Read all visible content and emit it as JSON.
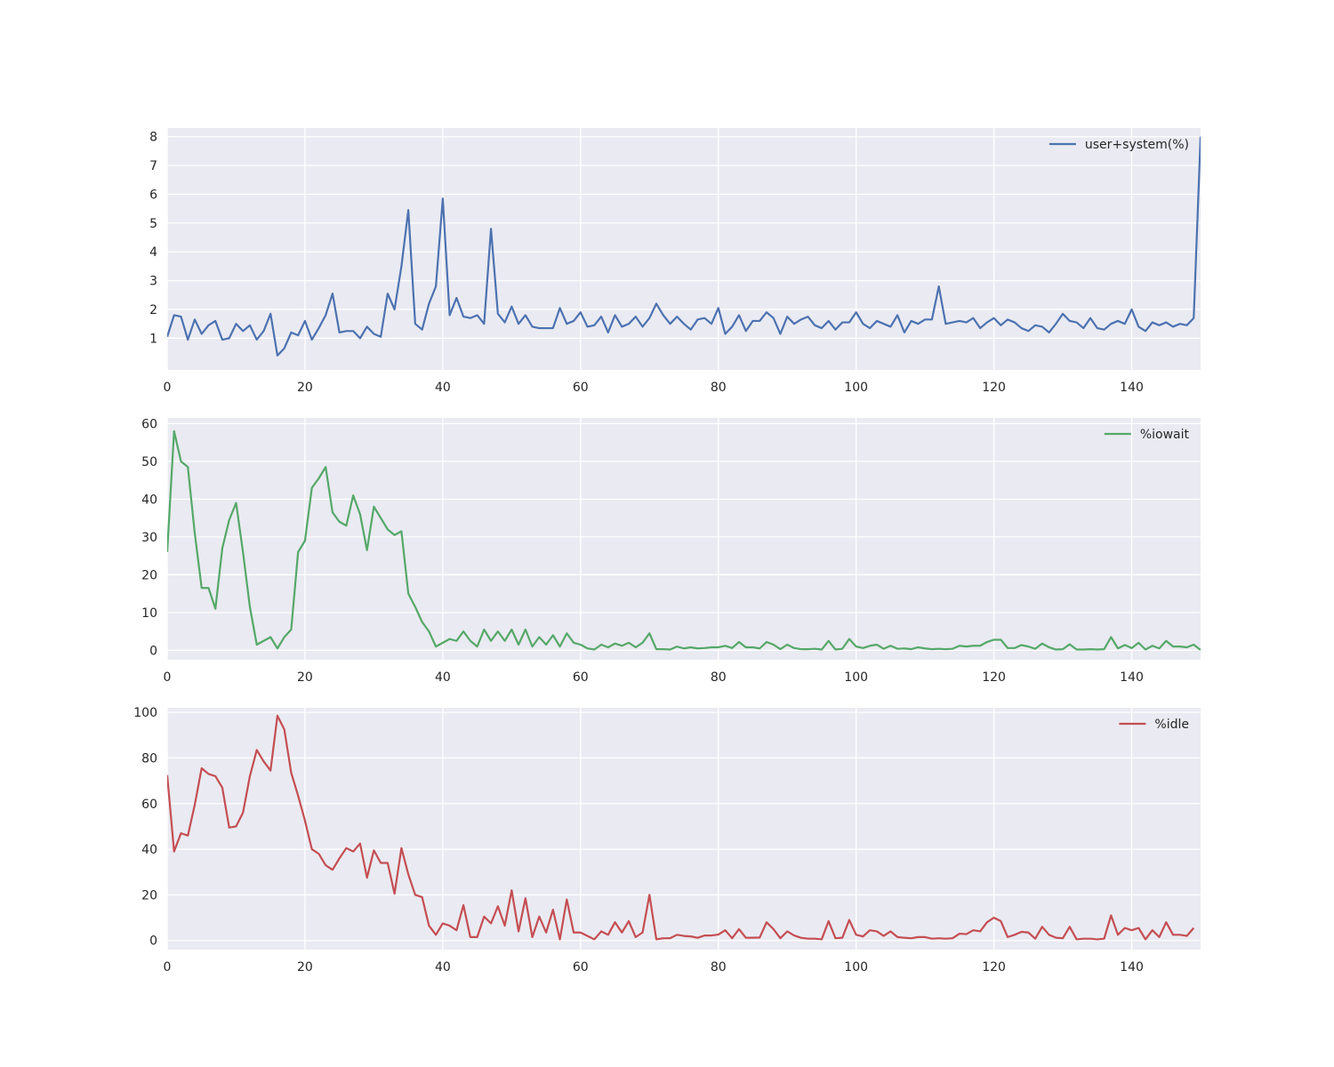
{
  "chart_data": [
    {
      "type": "line",
      "xlim": [
        0,
        150
      ],
      "ylim": [
        -0.1,
        8.3
      ],
      "xticks": [
        0,
        20,
        40,
        60,
        80,
        100,
        120,
        140
      ],
      "yticks": [
        1,
        2,
        3,
        4,
        5,
        6,
        7,
        8
      ],
      "grid": true,
      "legend_position": "top-right",
      "series": [
        {
          "name": "user+system(%)",
          "color": "#4c72b0",
          "values": [
            1.05,
            1.8,
            1.75,
            0.95,
            1.65,
            1.15,
            1.45,
            1.6,
            0.95,
            1.0,
            1.5,
            1.25,
            1.45,
            0.95,
            1.25,
            1.85,
            0.4,
            0.65,
            1.2,
            1.1,
            1.6,
            0.95,
            1.35,
            1.8,
            2.55,
            1.2,
            1.25,
            1.25,
            1.0,
            1.4,
            1.15,
            1.05,
            2.55,
            2.0,
            3.5,
            5.45,
            1.5,
            1.3,
            2.2,
            2.8,
            5.85,
            1.8,
            2.4,
            1.75,
            1.7,
            1.8,
            1.5,
            4.8,
            1.85,
            1.55,
            2.1,
            1.5,
            1.8,
            1.4,
            1.35,
            1.35,
            1.35,
            2.05,
            1.5,
            1.6,
            1.9,
            1.4,
            1.45,
            1.75,
            1.2,
            1.8,
            1.4,
            1.5,
            1.75,
            1.4,
            1.7,
            2.2,
            1.8,
            1.5,
            1.75,
            1.5,
            1.3,
            1.65,
            1.7,
            1.5,
            2.05,
            1.15,
            1.4,
            1.8,
            1.25,
            1.6,
            1.6,
            1.9,
            1.7,
            1.15,
            1.75,
            1.5,
            1.65,
            1.75,
            1.45,
            1.35,
            1.6,
            1.3,
            1.55,
            1.55,
            1.9,
            1.5,
            1.35,
            1.6,
            1.5,
            1.4,
            1.8,
            1.2,
            1.6,
            1.5,
            1.65,
            1.65,
            2.8,
            1.5,
            1.55,
            1.6,
            1.55,
            1.7,
            1.35,
            1.55,
            1.7,
            1.45,
            1.65,
            1.55,
            1.35,
            1.25,
            1.45,
            1.4,
            1.2,
            1.5,
            1.85,
            1.6,
            1.55,
            1.35,
            1.7,
            1.35,
            1.3,
            1.5,
            1.6,
            1.5,
            2.0,
            1.4,
            1.25,
            1.55,
            1.45,
            1.55,
            1.4,
            1.5,
            1.45,
            1.7,
            8.0
          ]
        }
      ]
    },
    {
      "type": "line",
      "xlim": [
        0,
        150
      ],
      "ylim": [
        -2.5,
        61.5
      ],
      "xticks": [
        0,
        20,
        40,
        60,
        80,
        100,
        120,
        140
      ],
      "yticks": [
        0,
        10,
        20,
        30,
        40,
        50,
        60
      ],
      "grid": true,
      "legend_position": "top-right",
      "series": [
        {
          "name": "%iowait",
          "color": "#55a868",
          "values": [
            26.0,
            58.0,
            50.0,
            48.5,
            31.0,
            16.5,
            16.5,
            11.0,
            27.0,
            34.5,
            39.0,
            26.0,
            11.5,
            1.5,
            2.5,
            3.5,
            0.5,
            3.5,
            5.5,
            26.0,
            29.0,
            43.0,
            45.5,
            48.5,
            36.5,
            34.0,
            33.0,
            41.0,
            36.0,
            26.5,
            38.0,
            35.0,
            32.0,
            30.5,
            31.5,
            15.0,
            11.5,
            7.5,
            5.0,
            1.0,
            2.0,
            3.0,
            2.5,
            5.0,
            2.5,
            1.0,
            5.5,
            2.5,
            5.0,
            2.5,
            5.5,
            1.5,
            5.5,
            1.0,
            3.5,
            1.5,
            4.0,
            1.0,
            4.5,
            2.0,
            1.5,
            0.5,
            0.2,
            1.5,
            0.8,
            1.8,
            1.2,
            2.0,
            0.8,
            2.0,
            4.5,
            0.3,
            0.3,
            0.2,
            1.0,
            0.5,
            0.8,
            0.5,
            0.6,
            0.8,
            0.8,
            1.2,
            0.6,
            2.2,
            0.8,
            0.8,
            0.5,
            2.2,
            1.5,
            0.3,
            1.5,
            0.6,
            0.3,
            0.3,
            0.4,
            0.2,
            2.5,
            0.2,
            0.4,
            3.0,
            1.0,
            0.6,
            1.2,
            1.5,
            0.4,
            1.2,
            0.4,
            0.5,
            0.3,
            0.8,
            0.5,
            0.3,
            0.4,
            0.3,
            0.4,
            1.2,
            1.0,
            1.2,
            1.2,
            2.2,
            2.8,
            2.8,
            0.6,
            0.6,
            1.4,
            1.0,
            0.4,
            1.8,
            0.8,
            0.2,
            0.3,
            1.6,
            0.2,
            0.2,
            0.3,
            0.2,
            0.3,
            3.5,
            0.5,
            1.4,
            0.6,
            2.0,
            0.2,
            1.2,
            0.5,
            2.5,
            1.0,
            1.0,
            0.8,
            1.5,
            0.1
          ]
        }
      ]
    },
    {
      "type": "line",
      "xlim": [
        0,
        150
      ],
      "ylim": [
        -4,
        102
      ],
      "xticks": [
        0,
        20,
        40,
        60,
        80,
        100,
        120,
        140
      ],
      "yticks": [
        0,
        20,
        40,
        60,
        80,
        100
      ],
      "grid": true,
      "legend_position": "top-right",
      "series": [
        {
          "name": "%idle",
          "color": "#c44e52",
          "values": [
            72.5,
            39.0,
            47.0,
            46.0,
            59.5,
            75.5,
            73.0,
            72.0,
            67.0,
            49.5,
            50.0,
            56.0,
            72.0,
            83.5,
            78.5,
            74.5,
            98.5,
            92.5,
            73.5,
            63.5,
            52.5,
            40.0,
            38.0,
            33.0,
            31.0,
            36.0,
            40.5,
            39.0,
            42.5,
            27.5,
            39.5,
            34.0,
            34.0,
            20.5,
            40.5,
            29.0,
            20.0,
            19.0,
            6.5,
            2.5,
            7.5,
            6.5,
            4.5,
            15.5,
            1.5,
            1.5,
            10.5,
            7.5,
            15.0,
            6.5,
            22.0,
            4.0,
            18.5,
            1.5,
            10.5,
            3.5,
            13.5,
            0.5,
            18.0,
            3.5,
            3.5,
            2.0,
            0.5,
            4.0,
            2.5,
            8.0,
            3.5,
            8.5,
            1.5,
            3.5,
            20.0,
            0.5,
            1.0,
            1.0,
            2.5,
            2.0,
            1.8,
            1.2,
            2.2,
            2.2,
            2.6,
            4.5,
            1.0,
            5.0,
            1.2,
            1.2,
            1.3,
            8.0,
            5.0,
            1.0,
            4.0,
            2.2,
            1.2,
            0.8,
            0.8,
            0.5,
            8.5,
            1.0,
            1.2,
            9.0,
            2.5,
            1.8,
            4.5,
            4.0,
            2.0,
            4.0,
            1.5,
            1.2,
            1.0,
            1.5,
            1.5,
            0.8,
            1.0,
            0.8,
            1.0,
            3.0,
            2.8,
            4.5,
            4.0,
            8.0,
            10.0,
            8.5,
            1.5,
            2.5,
            3.8,
            3.5,
            0.8,
            6.0,
            2.5,
            1.2,
            1.0,
            6.0,
            0.5,
            0.8,
            0.8,
            0.5,
            0.8,
            11.0,
            2.5,
            5.5,
            4.5,
            5.5,
            0.5,
            4.5,
            1.5,
            8.0,
            2.5,
            2.5,
            2.0,
            5.5
          ]
        }
      ]
    }
  ]
}
